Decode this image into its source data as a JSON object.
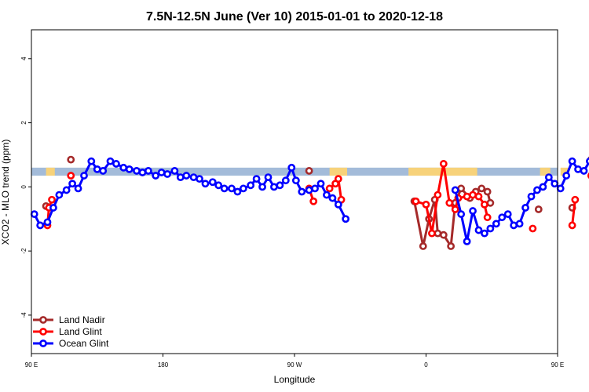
{
  "chart_data": {
    "type": "line",
    "title": "7.5N-12.5N June (Ver 10)   2015-01-01 to 2020-12-18",
    "xlabel": "Longitude",
    "ylabel": "XCO2 - MLO trend (ppm)",
    "xlim": [
      90,
      450
    ],
    "ylim": [
      -5.2,
      4.9
    ],
    "x_ticks": [
      {
        "value": 90,
        "label": "90 E"
      },
      {
        "value": 180,
        "label": "180"
      },
      {
        "value": 270,
        "label": "90 W"
      },
      {
        "value": 360,
        "label": "0"
      },
      {
        "value": 450,
        "label": "90 E"
      }
    ],
    "y_ticks": [
      {
        "value": -4,
        "label": "-4"
      },
      {
        "value": -2,
        "label": "-2"
      },
      {
        "value": 0,
        "label": "0"
      },
      {
        "value": 2,
        "label": "2"
      },
      {
        "value": 4,
        "label": "4"
      }
    ],
    "land_mask_band": {
      "y_range": [
        0.35,
        0.6
      ],
      "ocean_color": "#a3bbd9",
      "land_color": "#f7d27a",
      "land_segments": [
        [
          100,
          106
        ],
        [
          294,
          306
        ],
        [
          348,
          395
        ],
        [
          438,
          445
        ],
        [
          452,
          458
        ]
      ]
    },
    "legend_position": "bottom-left",
    "series": [
      {
        "name": "Land Nadir",
        "color": "#a52a2a",
        "segments": [
          [
            [
              100,
              -0.6
            ]
          ],
          [
            [
              117,
              0.85
            ]
          ],
          [
            [
              280,
              0.5
            ]
          ],
          [
            [
              352,
              -0.45
            ],
            [
              358,
              -1.85
            ],
            [
              362,
              -1.0
            ],
            [
              366,
              -0.4
            ],
            [
              368,
              -1.45
            ],
            [
              372,
              -1.5
            ],
            [
              377,
              -1.85
            ],
            [
              380,
              -0.5
            ],
            [
              384,
              -0.05
            ],
            [
              390,
              -0.35
            ],
            [
              394,
              -0.15
            ],
            [
              398,
              -0.05
            ],
            [
              402,
              -0.15
            ],
            [
              404,
              -0.5
            ]
          ],
          [
            [
              437,
              -0.7
            ]
          ],
          [
            [
              460,
              -0.65
            ]
          ],
          [
            [
              473,
              0.85
            ]
          ]
        ]
      },
      {
        "name": "Land Glint",
        "color": "#ff0000",
        "segments": [
          [
            [
              101,
              -1.2
            ],
            [
              102,
              -0.65
            ],
            [
              104,
              -0.4
            ]
          ],
          [
            [
              117,
              0.35
            ]
          ],
          [
            [
              280,
              -0.05
            ],
            [
              283,
              -0.45
            ]
          ],
          [
            [
              294,
              -0.05
            ],
            [
              298,
              0.1
            ],
            [
              300,
              0.25
            ],
            [
              302,
              -0.4
            ]
          ],
          [
            [
              353,
              -0.45
            ],
            [
              360,
              -0.55
            ],
            [
              364,
              -1.45
            ],
            [
              368,
              -0.25
            ],
            [
              372,
              0.72
            ],
            [
              376,
              -0.5
            ],
            [
              380,
              -0.7
            ],
            [
              382,
              -0.35
            ],
            [
              388,
              -0.3
            ],
            [
              392,
              -0.25
            ],
            [
              396,
              -0.3
            ],
            [
              400,
              -0.55
            ],
            [
              402,
              -0.95
            ]
          ],
          [
            [
              433,
              -1.3
            ]
          ],
          [
            [
              460,
              -1.2
            ],
            [
              462,
              -0.4
            ]
          ],
          [
            [
              473,
              0.35
            ]
          ]
        ]
      },
      {
        "name": "Ocean Glint",
        "color": "#0000ff",
        "segments": [
          [
            [
              92,
              -0.85
            ],
            [
              96,
              -1.2
            ],
            [
              101,
              -1.1
            ],
            [
              105,
              -0.65
            ],
            [
              109,
              -0.25
            ],
            [
              114,
              -0.1
            ],
            [
              118,
              0.1
            ],
            [
              122,
              -0.05
            ],
            [
              126,
              0.35
            ],
            [
              131,
              0.8
            ],
            [
              135,
              0.55
            ],
            [
              139,
              0.5
            ],
            [
              144,
              0.8
            ],
            [
              148,
              0.72
            ],
            [
              153,
              0.6
            ],
            [
              157,
              0.55
            ],
            [
              162,
              0.5
            ],
            [
              166,
              0.45
            ],
            [
              170,
              0.5
            ],
            [
              175,
              0.35
            ],
            [
              179,
              0.45
            ],
            [
              183,
              0.4
            ],
            [
              188,
              0.5
            ],
            [
              192,
              0.3
            ],
            [
              196,
              0.35
            ],
            [
              201,
              0.3
            ],
            [
              205,
              0.25
            ],
            [
              209,
              0.1
            ],
            [
              214,
              0.15
            ],
            [
              218,
              0.05
            ],
            [
              222,
              -0.05
            ],
            [
              227,
              -0.05
            ],
            [
              231,
              -0.15
            ],
            [
              235,
              -0.05
            ],
            [
              240,
              0.05
            ],
            [
              244,
              0.25
            ],
            [
              248,
              0.0
            ],
            [
              252,
              0.3
            ],
            [
              256,
              0.0
            ],
            [
              260,
              0.05
            ],
            [
              264,
              0.2
            ],
            [
              268,
              0.6
            ],
            [
              271,
              0.2
            ],
            [
              275,
              -0.15
            ],
            [
              280,
              -0.1
            ],
            [
              284,
              -0.05
            ],
            [
              288,
              0.1
            ],
            [
              292,
              -0.25
            ],
            [
              296,
              -0.35
            ],
            [
              300,
              -0.55
            ],
            [
              305,
              -1.0
            ]
          ],
          [
            [
              380,
              -0.1
            ],
            [
              384,
              -0.85
            ],
            [
              388,
              -1.7
            ],
            [
              392,
              -0.75
            ],
            [
              396,
              -1.35
            ],
            [
              400,
              -1.45
            ],
            [
              404,
              -1.3
            ],
            [
              408,
              -1.15
            ],
            [
              412,
              -0.95
            ],
            [
              416,
              -0.85
            ],
            [
              420,
              -1.2
            ],
            [
              424,
              -1.15
            ],
            [
              428,
              -0.65
            ],
            [
              432,
              -0.3
            ],
            [
              436,
              -0.1
            ],
            [
              440,
              0.0
            ],
            [
              444,
              0.3
            ],
            [
              448,
              0.1
            ],
            [
              452,
              -0.05
            ],
            [
              456,
              0.35
            ],
            [
              460,
              0.8
            ],
            [
              464,
              0.55
            ],
            [
              468,
              0.5
            ],
            [
              472,
              0.8
            ],
            [
              476,
              0.75
            ],
            [
              480,
              0.65
            ],
            [
              484,
              0.55
            ],
            [
              488,
              0.5
            ]
          ]
        ]
      }
    ]
  }
}
